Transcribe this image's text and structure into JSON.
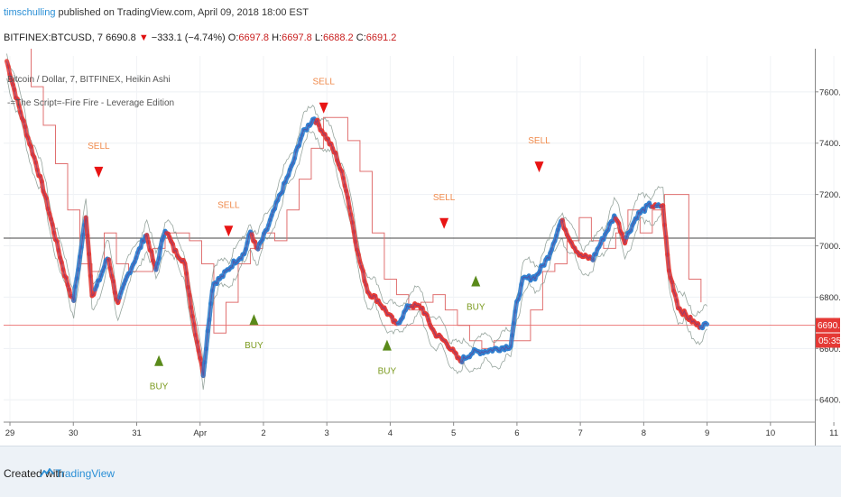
{
  "header": {
    "author": "timschulling",
    "published": "published on TradingView.com, April 09, 2018 18:00 EST",
    "symbol": "BITFINEX:BTCUSD, 7",
    "price": "6690.8",
    "arrow": "▼",
    "change": "−333.1 (−4.74%)",
    "o_label": "O:",
    "o_value": "6697.8",
    "h_label": "H:",
    "h_value": "6697.8",
    "l_label": "L:",
    "l_value": "6688.2",
    "c_label": "C:",
    "c_value": "6691.2"
  },
  "legend": {
    "line1": "Bitcoin / Dollar, 7, BITFINEX, Heikin Ashi",
    "line2": "-=The Script=-Fire Fire - Leverage Edition"
  },
  "price_axis": {
    "ticks": [
      "7600.0",
      "7400.0",
      "7200.0",
      "7000.0",
      "6800.0",
      "6600.0",
      "6400.0"
    ],
    "last_price_badge": "6690.8",
    "countdown_badge": "05:35"
  },
  "time_axis": {
    "ticks": [
      "29",
      "30",
      "31",
      "Apr",
      "2",
      "3",
      "4",
      "5",
      "6",
      "7",
      "8",
      "9",
      "10",
      "11"
    ]
  },
  "footer": {
    "created_with": "Created with",
    "brand": "TradingView",
    "logo_icon": "tradingview-logo-icon"
  },
  "colors": {
    "sell": "#f08a4b",
    "sell_arrow": "#e81414",
    "buy": "#7b9a1e",
    "buy_arrow": "#5a8a1a",
    "ribbon_down": "#e53935",
    "ribbon_up": "#2f7fd0",
    "step_line": "#e07070",
    "grey_line": "#444444",
    "red_line": "#e54040"
  },
  "chart_data": {
    "type": "line",
    "title": "Bitcoin / Dollar, 7, BITFINEX, Heikin Ashi",
    "x_ticks": [
      "29",
      "30",
      "31",
      "Apr",
      "2",
      "3",
      "4",
      "5",
      "6",
      "7",
      "8",
      "9",
      "10",
      "11"
    ],
    "ylim": [
      6320,
      7740
    ],
    "y_ticks": [
      7600,
      7400,
      7200,
      7000,
      6800,
      6600,
      6400
    ],
    "horizontal_lines": [
      7030,
      6691
    ],
    "last_price": 6690.8,
    "series": [
      {
        "x": [
          28.95,
          29.1,
          29.25,
          29.4,
          29.55,
          29.7,
          29.85,
          30.0,
          30.1,
          30.2,
          30.3,
          30.4,
          30.55,
          30.7,
          30.85,
          31.0,
          31.15,
          31.3,
          31.45,
          31.6,
          31.75,
          31.9,
          32.05,
          32.2,
          32.35,
          32.55,
          32.7,
          32.8,
          32.9,
          33.05,
          33.25,
          33.45,
          33.6,
          33.8,
          34.0,
          34.15,
          34.3,
          34.5,
          34.65,
          34.8,
          34.95,
          35.1,
          35.3,
          35.5,
          35.7,
          35.9,
          36.1,
          36.3,
          36.5,
          36.7,
          36.9,
          37.0,
          37.1,
          37.3,
          37.5,
          37.7,
          37.85,
          38.0,
          38.2,
          38.4,
          38.55,
          38.7,
          38.9,
          39.1,
          39.2,
          39.3,
          39.4,
          39.55,
          39.7,
          39.85,
          40.0
        ],
        "values": [
          7720,
          7580,
          7450,
          7330,
          7200,
          7050,
          6900,
          6780,
          6950,
          7120,
          6800,
          6860,
          6960,
          6770,
          6880,
          6960,
          7050,
          6900,
          7070,
          6980,
          6940,
          6700,
          6500,
          6850,
          6880,
          6940,
          6970,
          7060,
          6980,
          7060,
          7190,
          7310,
          7430,
          7500,
          7420,
          7350,
          7230,
          6960,
          6820,
          6790,
          6740,
          6690,
          6770,
          6760,
          6660,
          6620,
          6550,
          6585,
          6590,
          6600,
          6610,
          6780,
          6870,
          6880,
          6960,
          7100,
          7020,
          6960,
          6950,
          7050,
          7120,
          7020,
          7120,
          7160,
          7150,
          7160,
          6900,
          6760,
          6720,
          6690,
          6691
        ]
      }
    ],
    "annotations": [
      {
        "label": "SELL",
        "x": 30.4,
        "y": 7280,
        "direction": "sell"
      },
      {
        "label": "BUY",
        "x": 31.35,
        "y": 6560,
        "direction": "buy"
      },
      {
        "label": "SELL",
        "x": 32.45,
        "y": 7050,
        "direction": "sell"
      },
      {
        "label": "BUY",
        "x": 32.85,
        "y": 6720,
        "direction": "buy"
      },
      {
        "label": "SELL",
        "x": 33.95,
        "y": 7530,
        "direction": "sell"
      },
      {
        "label": "BUY",
        "x": 34.95,
        "y": 6620,
        "direction": "buy"
      },
      {
        "label": "SELL",
        "x": 35.85,
        "y": 7080,
        "direction": "sell"
      },
      {
        "label": "BUY",
        "x": 36.35,
        "y": 6870,
        "direction": "buy"
      },
      {
        "label": "SELL",
        "x": 37.35,
        "y": 7300,
        "direction": "sell"
      }
    ]
  }
}
